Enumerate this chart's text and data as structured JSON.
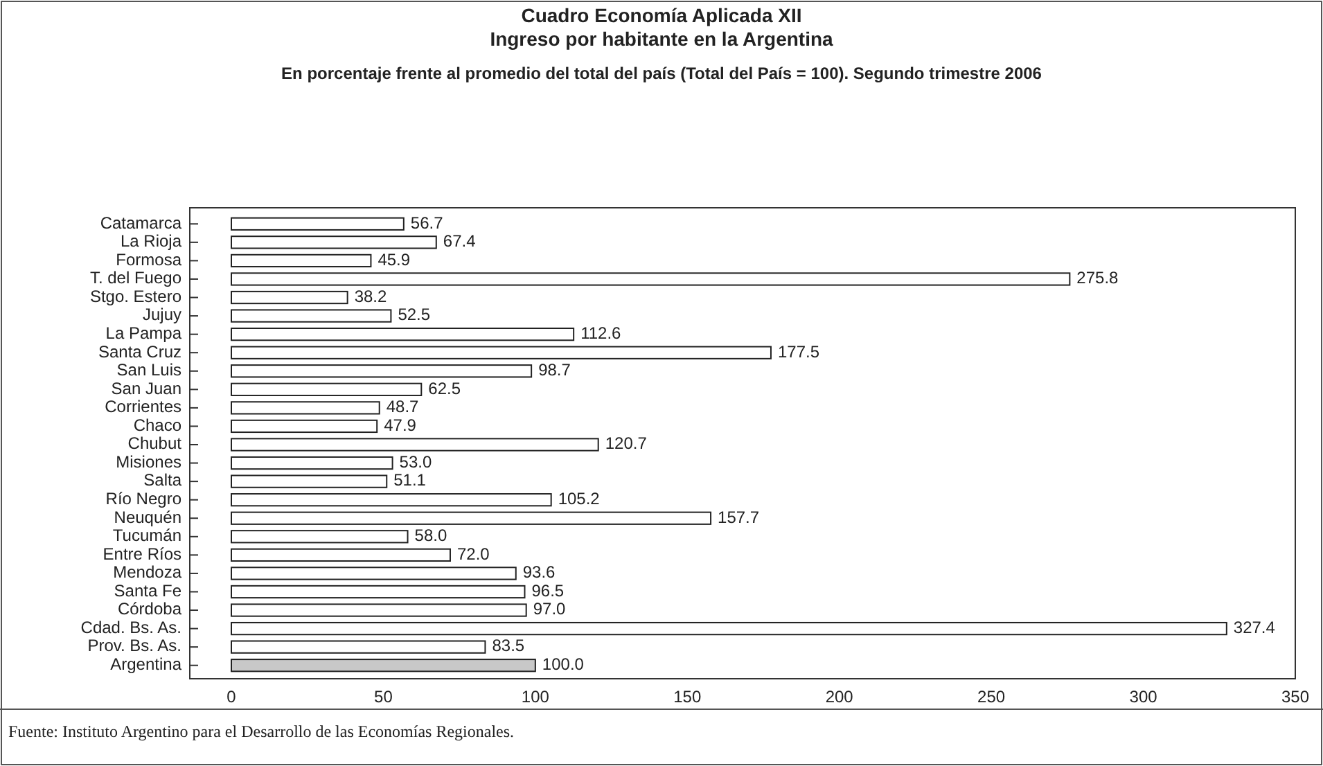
{
  "chart_data": {
    "type": "bar",
    "orientation": "horizontal",
    "title": "Cuadro Economía Aplicada XII\nIngreso por habitante en la Argentina",
    "subtitle": "En porcentaje frente al promedio del total del país (Total del País = 100). Segundo trimestre 2006",
    "categories": [
      "Catamarca",
      "La Rioja",
      "Formosa",
      "T. del Fuego",
      "Stgo. Estero",
      "Jujuy",
      "La Pampa",
      "Santa Cruz",
      "San Luis",
      "San Juan",
      "Corrientes",
      "Chaco",
      "Chubut",
      "Misiones",
      "Salta",
      "Río Negro",
      "Neuquén",
      "Tucumán",
      "Entre Ríos",
      "Mendoza",
      "Santa Fe",
      "Córdoba",
      "Cdad. Bs. As.",
      "Prov. Bs. As.",
      "Argentina"
    ],
    "values": [
      56.7,
      67.4,
      45.9,
      275.8,
      38.2,
      52.5,
      112.6,
      177.5,
      98.7,
      62.5,
      48.7,
      47.9,
      120.7,
      53.0,
      51.1,
      105.2,
      157.7,
      58.0,
      72.0,
      93.6,
      96.5,
      97.0,
      327.4,
      83.5,
      100.0
    ],
    "value_labels": [
      "56.7",
      "67.4",
      "45.9",
      "275.8",
      "38.2",
      "52.5",
      "112.6",
      "177.5",
      "98.7",
      "62.5",
      "48.7",
      "47.9",
      "120.7",
      "53.0",
      "51.1",
      "105.2",
      "157.7",
      "58.0",
      "72.0",
      "93.6",
      "96.5",
      "97.0",
      "327.4",
      "83.5",
      "100.0"
    ],
    "colors": [
      "#ffffff",
      "#ffffff",
      "#ffffff",
      "#ffffff",
      "#ffffff",
      "#ffffff",
      "#ffffff",
      "#ffffff",
      "#ffffff",
      "#ffffff",
      "#ffffff",
      "#ffffff",
      "#ffffff",
      "#ffffff",
      "#ffffff",
      "#ffffff",
      "#ffffff",
      "#ffffff",
      "#ffffff",
      "#ffffff",
      "#ffffff",
      "#ffffff",
      "#ffffff",
      "#ffffff",
      "#c8c8c8"
    ],
    "xlim": [
      0,
      350
    ],
    "xticks": [
      0,
      50,
      100,
      150,
      200,
      250,
      300,
      350
    ],
    "grid": false,
    "annotations": [
      "Fuente: Instituto Argentino para el Desarrollo de las Economías Regionales."
    ]
  }
}
